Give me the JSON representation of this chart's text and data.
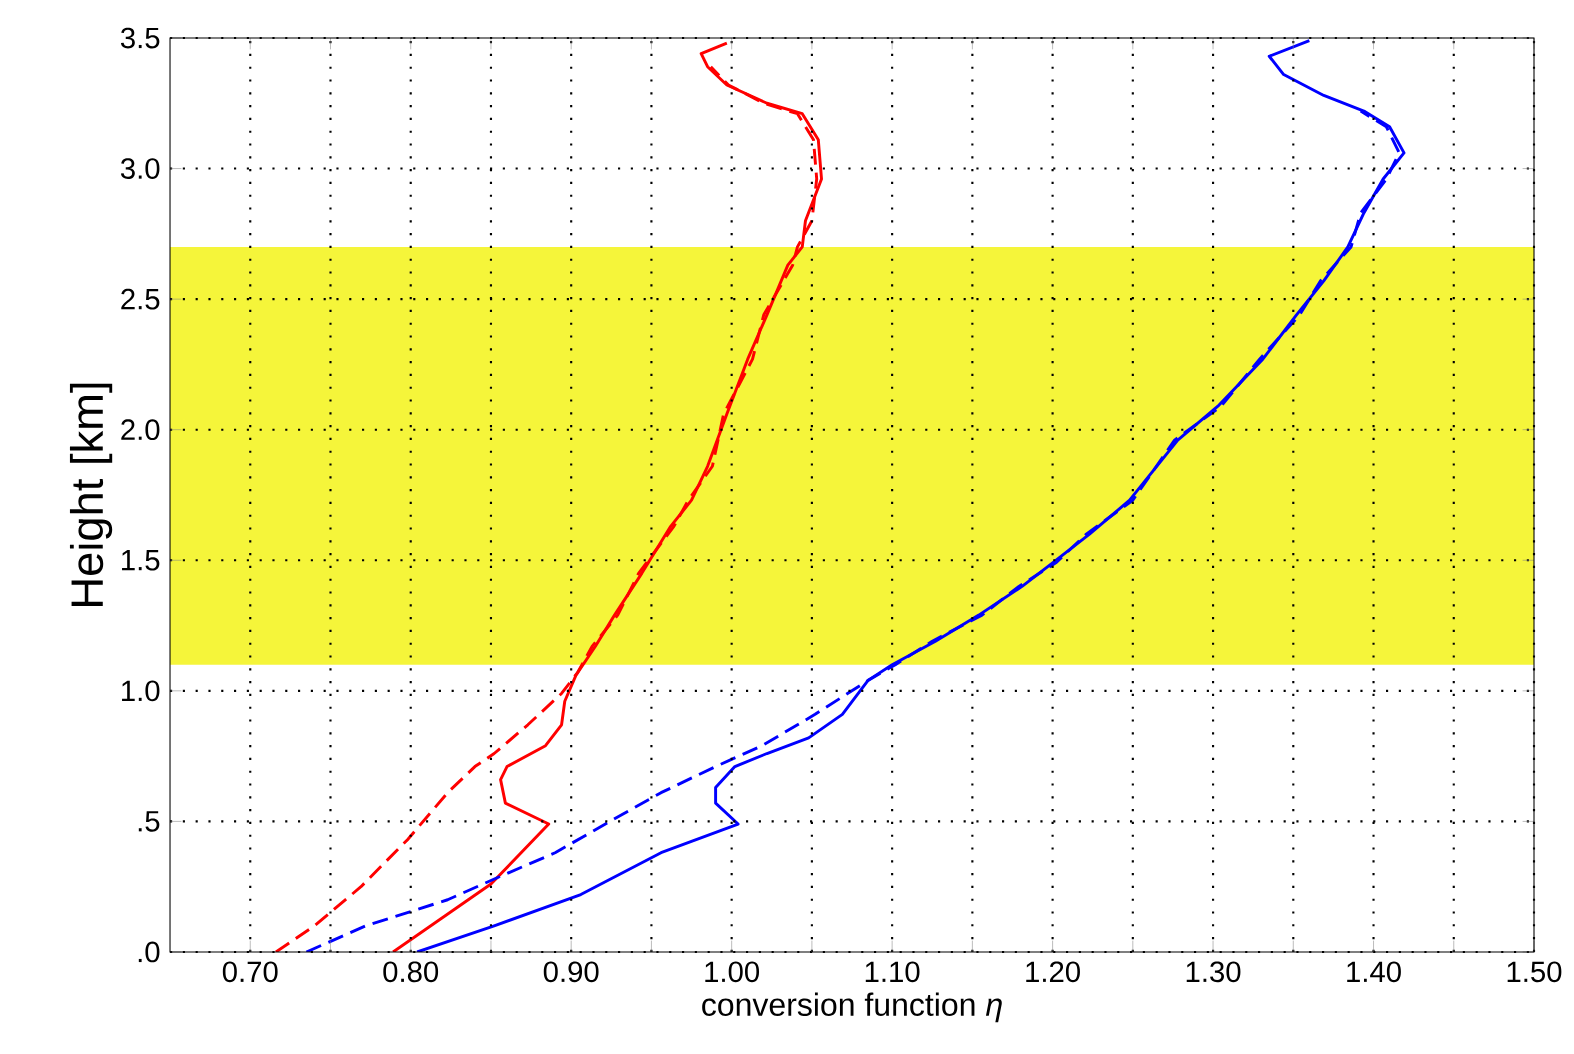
{
  "chart_data": {
    "type": "line",
    "xlabel": "conversion function *η*",
    "ylabel": "Height [km]",
    "xlim": [
      0.65,
      1.5
    ],
    "ylim": [
      0,
      3.5
    ],
    "xticks": [
      {
        "value": 0.7,
        "label": "0.70"
      },
      {
        "value": 0.75,
        "label": null
      },
      {
        "value": 0.8,
        "label": "0.80"
      },
      {
        "value": 0.85,
        "label": null
      },
      {
        "value": 0.9,
        "label": "0.90"
      },
      {
        "value": 0.95,
        "label": null
      },
      {
        "value": 1.0,
        "label": "1.00"
      },
      {
        "value": 1.05,
        "label": null
      },
      {
        "value": 1.1,
        "label": "1.10"
      },
      {
        "value": 1.15,
        "label": null
      },
      {
        "value": 1.2,
        "label": "1.20"
      },
      {
        "value": 1.25,
        "label": null
      },
      {
        "value": 1.3,
        "label": "1.30"
      },
      {
        "value": 1.35,
        "label": null
      },
      {
        "value": 1.4,
        "label": "1.40"
      },
      {
        "value": 1.45,
        "label": null
      },
      {
        "value": 1.5,
        "label": "1.50"
      }
    ],
    "yticks": [
      {
        "value": 0,
        "label": ".0"
      },
      {
        "value": 0.5,
        "label": ".5"
      },
      {
        "value": 1.0,
        "label": "1.0"
      },
      {
        "value": 1.5,
        "label": "1.5"
      },
      {
        "value": 2.0,
        "label": "2.0"
      },
      {
        "value": 2.5,
        "label": "2.5"
      },
      {
        "value": 3.0,
        "label": "3.0"
      },
      {
        "value": 3.5,
        "label": "3.5"
      }
    ],
    "grid": true,
    "marker": "none",
    "bands": [
      {
        "axis": "y",
        "from": 1.1,
        "to": 2.7,
        "color": "#f5f53a"
      }
    ],
    "series": [
      {
        "color": "#ff0000",
        "line_style": "solid",
        "x": [
          0.789,
          0.85,
          0.886,
          0.859,
          0.856,
          0.86,
          0.884,
          0.894,
          0.896,
          0.903,
          0.915,
          0.927,
          0.944,
          0.962,
          0.975,
          0.985,
          0.997,
          1.01,
          1.022,
          1.035,
          1.044,
          1.046,
          1.056,
          1.054,
          1.044,
          1.022,
          0.997,
          0.985,
          0.981,
          0.997
        ],
        "values": [
          0,
          0.26,
          0.49,
          0.57,
          0.66,
          0.71,
          0.79,
          0.87,
          0.96,
          1.06,
          1.17,
          1.29,
          1.45,
          1.63,
          1.73,
          1.86,
          2.06,
          2.27,
          2.44,
          2.63,
          2.7,
          2.8,
          2.96,
          3.11,
          3.21,
          3.25,
          3.32,
          3.39,
          3.44,
          3.48
        ]
      },
      {
        "color": "#ff0000",
        "line_style": "dashed",
        "x": [
          0.716,
          0.74,
          0.769,
          0.798,
          0.823,
          0.84,
          0.852,
          0.873,
          0.894,
          0.904,
          0.913,
          0.929,
          0.942,
          0.964,
          0.973,
          0.988,
          0.995,
          1.013,
          1.02,
          1.038,
          1.041,
          1.05,
          1.053,
          1.051,
          1.041,
          1.02,
          0.998,
          0.987
        ],
        "values": [
          0,
          0.1,
          0.25,
          0.43,
          0.61,
          0.71,
          0.76,
          0.87,
          0.99,
          1.07,
          1.17,
          1.29,
          1.45,
          1.63,
          1.73,
          1.86,
          2.06,
          2.27,
          2.44,
          2.63,
          2.7,
          2.8,
          2.96,
          3.11,
          3.21,
          3.25,
          3.32,
          3.39
        ]
      },
      {
        "color": "#0000ff",
        "line_style": "solid",
        "x": [
          0.804,
          0.852,
          0.906,
          0.956,
          1.004,
          0.99,
          0.99,
          1.002,
          1.022,
          1.048,
          1.069,
          1.085,
          1.1,
          1.127,
          1.154,
          1.181,
          1.2,
          1.223,
          1.248,
          1.278,
          1.303,
          1.331,
          1.352,
          1.369,
          1.384,
          1.394,
          1.406,
          1.419,
          1.41,
          1.394,
          1.369,
          1.344,
          1.335,
          1.36
        ],
        "values": [
          0,
          0.1,
          0.22,
          0.38,
          0.49,
          0.57,
          0.63,
          0.71,
          0.76,
          0.82,
          0.91,
          1.04,
          1.1,
          1.19,
          1.29,
          1.4,
          1.49,
          1.6,
          1.73,
          1.96,
          2.09,
          2.27,
          2.44,
          2.57,
          2.7,
          2.83,
          2.96,
          3.06,
          3.16,
          3.22,
          3.28,
          3.36,
          3.43,
          3.49
        ]
      },
      {
        "color": "#0000ff",
        "line_style": "dashed",
        "x": [
          0.735,
          0.772,
          0.823,
          0.856,
          0.89,
          0.927,
          0.956,
          0.99,
          1.019,
          1.052,
          1.085,
          1.102,
          1.125,
          1.156,
          1.179,
          1.202,
          1.221,
          1.25,
          1.276,
          1.305,
          1.329,
          1.354,
          1.367,
          1.386,
          1.392,
          1.408,
          1.416,
          1.408,
          1.392
        ],
        "values": [
          0,
          0.1,
          0.2,
          0.29,
          0.38,
          0.51,
          0.61,
          0.71,
          0.79,
          0.91,
          1.04,
          1.1,
          1.19,
          1.29,
          1.4,
          1.49,
          1.6,
          1.73,
          1.96,
          2.09,
          2.27,
          2.44,
          2.57,
          2.7,
          2.83,
          2.96,
          3.06,
          3.16,
          3.22
        ]
      }
    ]
  }
}
